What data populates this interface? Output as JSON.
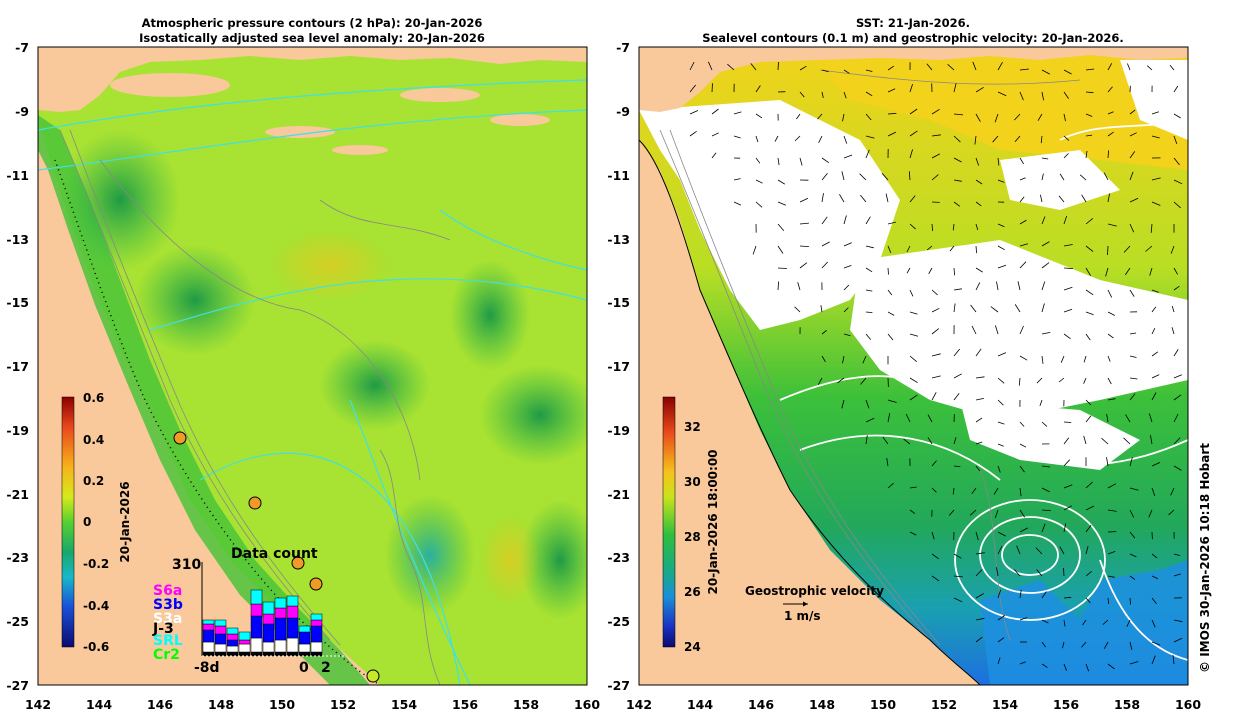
{
  "left_panel": {
    "title_line1": "Atmospheric pressure contours (2 hPa): 20-Jan-2026",
    "title_line2": "Isostatically adjusted sea level anomaly: 20-Jan-2026",
    "colorbar": {
      "label": "20-Jan-2026",
      "ticks": [
        "0.6",
        "0.4",
        "0.2",
        "0",
        "-0.2",
        "-0.4",
        "-0.6"
      ]
    },
    "data_count": {
      "title": "Data count",
      "max_value": "310",
      "missions": [
        {
          "label": "S6a",
          "color": "#ff00ff"
        },
        {
          "label": "S3b",
          "color": "#0000ff"
        },
        {
          "label": "S3a",
          "color": "#ffffff"
        },
        {
          "label": "J-3",
          "color": "#000000"
        },
        {
          "label": "SRL",
          "color": "#00ffff"
        },
        {
          "label": "Cr2",
          "color": "#00ff00"
        }
      ],
      "x_labels": [
        "-8d",
        "0",
        "2"
      ]
    }
  },
  "right_panel": {
    "title_line1": "SST: 21-Jan-2026.",
    "title_line2": "Sealevel contours (0.1 m) and geostrophic velocity: 20-Jan-2026.",
    "colorbar": {
      "label": "20-Jan-2026 18:00:00",
      "ticks": [
        "32",
        "30",
        "28",
        "26",
        "24"
      ]
    },
    "velocity_legend": {
      "title": "Geostrophic velocity",
      "scale_label": "1 m/s"
    }
  },
  "axes": {
    "y_ticks": [
      "-7",
      "-9",
      "-11",
      "-13",
      "-15",
      "-17",
      "-19",
      "-21",
      "-23",
      "-25",
      "-27"
    ],
    "x_ticks": [
      "142",
      "144",
      "146",
      "148",
      "150",
      "152",
      "154",
      "156",
      "158",
      "160"
    ]
  },
  "copyright": "© IMOS 30-Jan-2026 10:18 Hobart",
  "colors": {
    "land": "#f9c89b",
    "ocean_mid": "#a8e232",
    "ocean_low": "#2fb84a",
    "sst_warm": "#f2d21b",
    "sst_cool": "#1d8fe0"
  }
}
